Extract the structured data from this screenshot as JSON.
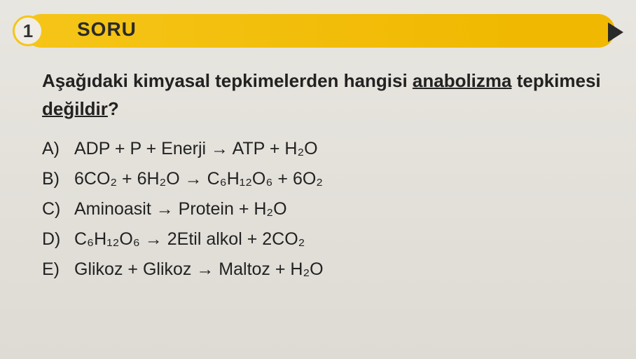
{
  "header": {
    "number": "1",
    "label": "SORU"
  },
  "question": {
    "prefix": "Aşağıdaki kimyasal tepkimelerden hangisi ",
    "underlined1": "anabolizma",
    "mid": " tepkimesi ",
    "underlined2": "değildir",
    "suffix": "?"
  },
  "options": {
    "a": {
      "letter": "A)",
      "text": "ADP + P + Enerji → ATP + H₂O"
    },
    "b": {
      "letter": "B)",
      "text": "6CO₂ + 6H₂O → C₆H₁₂O₆ + 6O₂"
    },
    "c": {
      "letter": "C)",
      "text": "Aminoasit → Protein + H₂O"
    },
    "d": {
      "letter": "D)",
      "text": "C₆H₁₂O₆ → 2Etil alkol + 2CO₂"
    },
    "e": {
      "letter": "E)",
      "text": "Glikoz + Glikoz → Maltoz + H₂O"
    }
  },
  "colors": {
    "yellow": "#f5c518",
    "background": "#e8e6e0",
    "text": "#222222"
  }
}
